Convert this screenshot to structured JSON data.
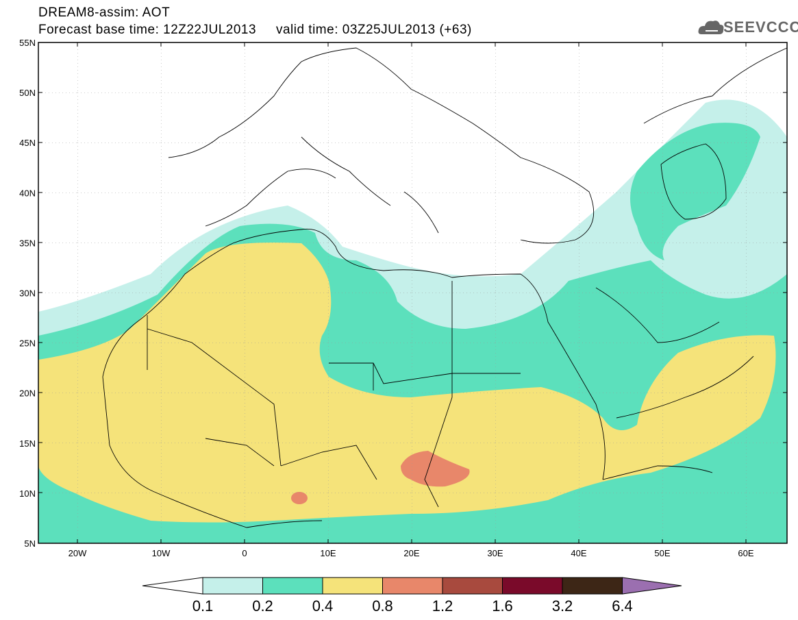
{
  "title": {
    "line1": "DREAM8-assim: AOT",
    "line2": "Forecast base time: 12Z22JUL2013     valid time: 03Z25JUL2013 (+63)"
  },
  "logo": {
    "text": "SEEVCCC",
    "icon": "cloud-icon"
  },
  "map": {
    "lat_labels": [
      "55N",
      "50N",
      "45N",
      "40N",
      "35N",
      "30N",
      "25N",
      "20N",
      "15N",
      "10N",
      "5N"
    ],
    "lon_labels": [
      "20W",
      "10W",
      "0",
      "10E",
      "20E",
      "30E",
      "40E",
      "50E",
      "60E"
    ]
  },
  "colorbar": {
    "labels": [
      "0.1",
      "0.2",
      "0.4",
      "0.8",
      "1.2",
      "1.6",
      "3.2",
      "6.4"
    ],
    "colors": [
      "#c5f0ea",
      "#5ce0bc",
      "#f5e37a",
      "#e8876a",
      "#a84a3e",
      "#7a0a2a",
      "#3d2616",
      "#9b6fb0"
    ]
  }
}
